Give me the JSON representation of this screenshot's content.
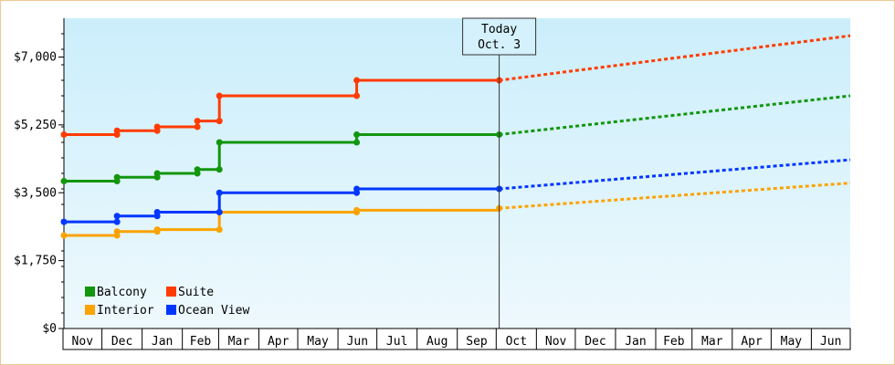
{
  "chart_data": {
    "type": "line",
    "title": "",
    "xlabel": "",
    "ylabel": "",
    "x_domain": [
      "2022-11-01",
      "2023-07-01"
    ],
    "ylim": [
      0,
      8000
    ],
    "y_ticks": [
      0,
      1750,
      3500,
      5250,
      7000
    ],
    "y_tick_labels": [
      "$0",
      "$1,750",
      "$3,500",
      "$5,250",
      "$7,000"
    ],
    "x_tick_labels": [
      "Nov",
      "Dec",
      "Jan",
      "Feb",
      "Mar",
      "Apr",
      "May",
      "Jun",
      "Jul",
      "Aug",
      "Sep",
      "Oct",
      "Nov",
      "Dec",
      "Jan",
      "Feb",
      "Mar",
      "Apr",
      "May",
      "Jun"
    ],
    "x_tick_dates": [
      "2021-11-01",
      "2021-12-01",
      "2022-01-01",
      "2022-02-01",
      "2022-03-01",
      "2022-04-01",
      "2022-05-01",
      "2022-06-01",
      "2022-07-01",
      "2022-08-01",
      "2022-09-01",
      "2022-10-01",
      "2022-11-01",
      "2022-12-01",
      "2023-01-01",
      "2023-02-01",
      "2023-03-01",
      "2023-04-01",
      "2023-05-01",
      "2023-06-01"
    ],
    "grid": false,
    "legend_position": "bottom-left",
    "today_marker": {
      "line1": "Today",
      "line2": "Oct. 3",
      "date": "2022-10-03"
    },
    "series": [
      {
        "name": "Balcony",
        "color": "#12960e",
        "history": [
          [
            "2021-11-01",
            3800
          ],
          [
            "2021-12-12",
            3900
          ],
          [
            "2022-01-12",
            4000
          ],
          [
            "2022-02-12",
            4100
          ],
          [
            "2022-03-01",
            4800
          ],
          [
            "2022-06-15",
            5000
          ],
          [
            "2022-10-03",
            5000
          ]
        ],
        "forecast": [
          [
            "2022-10-03",
            5000
          ],
          [
            "2023-07-01",
            6000
          ]
        ]
      },
      {
        "name": "Suite",
        "color": "#ff3c00",
        "history": [
          [
            "2021-11-01",
            5000
          ],
          [
            "2021-12-12",
            5100
          ],
          [
            "2022-01-12",
            5200
          ],
          [
            "2022-02-12",
            5350
          ],
          [
            "2022-03-01",
            6000
          ],
          [
            "2022-06-15",
            6400
          ],
          [
            "2022-10-03",
            6400
          ]
        ],
        "forecast": [
          [
            "2022-10-03",
            6400
          ],
          [
            "2023-07-01",
            7550
          ]
        ]
      },
      {
        "name": "Interior",
        "color": "#fba300",
        "history": [
          [
            "2021-11-01",
            2400
          ],
          [
            "2021-12-12",
            2500
          ],
          [
            "2022-01-12",
            2550
          ],
          [
            "2022-03-01",
            3000
          ],
          [
            "2022-06-15",
            3050
          ],
          [
            "2022-10-03",
            3100
          ]
        ],
        "forecast": [
          [
            "2022-10-03",
            3100
          ],
          [
            "2023-07-01",
            3750
          ]
        ]
      },
      {
        "name": "Ocean View",
        "color": "#0037ff",
        "history": [
          [
            "2021-11-01",
            2750
          ],
          [
            "2021-12-12",
            2900
          ],
          [
            "2022-01-12",
            3000
          ],
          [
            "2022-03-01",
            3500
          ],
          [
            "2022-06-15",
            3600
          ],
          [
            "2022-10-03",
            3600
          ]
        ],
        "forecast": [
          [
            "2022-10-03",
            3600
          ],
          [
            "2023-07-01",
            4350
          ]
        ]
      }
    ],
    "legend_order": [
      "Balcony",
      "Suite",
      "Interior",
      "Ocean View"
    ]
  }
}
